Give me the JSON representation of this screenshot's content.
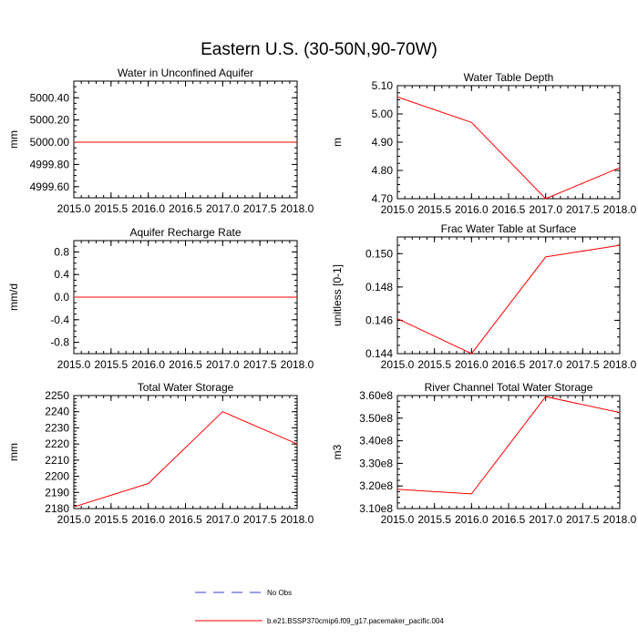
{
  "figure_title": "Eastern U.S. (30-50N,90-70W)",
  "colors": {
    "model": "#ff0000",
    "obs": "#3b3bd6",
    "axis": "#000000"
  },
  "legend": [
    {
      "label": "No Obs",
      "style": "dashed",
      "color": "#3b3bd6"
    },
    {
      "label": "b.e21.BSSP370cmip6.f09_g17.pacemaker_pacific.004",
      "style": "solid",
      "color": "#ff0000"
    }
  ],
  "chart_data": [
    {
      "type": "line",
      "title": "Water in Unconfined Aquifer",
      "ylabel": "mm",
      "xlim": [
        2015.0,
        2018.0
      ],
      "ylim": [
        4999.5,
        5000.55
      ],
      "xticks": [
        "2015.0",
        "2015.5",
        "2016.0",
        "2016.5",
        "2017.0",
        "2017.5",
        "2018.0"
      ],
      "xtick_values": [
        2015.0,
        2015.5,
        2016.0,
        2016.5,
        2017.0,
        2017.5,
        2018.0
      ],
      "yticks": [
        "4999.60",
        "4999.80",
        "5000.00",
        "5000.20",
        "5000.40"
      ],
      "ytick_values": [
        4999.6,
        4999.8,
        5000.0,
        5000.2,
        5000.4
      ],
      "yminor_step": 0.05,
      "series": [
        {
          "name": "b.e21.BSSP370cmip6.f09_g17.pacemaker_pacific.004",
          "x": [
            2015,
            2016,
            2017,
            2018
          ],
          "values": [
            5000.0,
            5000.0,
            5000.0,
            5000.0
          ]
        }
      ]
    },
    {
      "type": "line",
      "title": "Water Table Depth",
      "ylabel": "m",
      "xlim": [
        2015.0,
        2018.0
      ],
      "ylim": [
        4.7,
        5.1
      ],
      "xticks": [
        "2015.0",
        "2015.5",
        "2016.0",
        "2016.5",
        "2017.0",
        "2017.5",
        "2018.0"
      ],
      "xtick_values": [
        2015.0,
        2015.5,
        2016.0,
        2016.5,
        2017.0,
        2017.5,
        2018.0
      ],
      "yticks": [
        "4.70",
        "4.80",
        "4.90",
        "5.00",
        "5.10"
      ],
      "ytick_values": [
        4.7,
        4.8,
        4.9,
        5.0,
        5.1
      ],
      "yminor_step": 0.025,
      "series": [
        {
          "name": "b.e21.BSSP370cmip6.f09_g17.pacemaker_pacific.004",
          "x": [
            2015,
            2016,
            2017,
            2018
          ],
          "values": [
            5.06,
            4.97,
            4.7,
            4.81
          ]
        }
      ]
    },
    {
      "type": "line",
      "title": "Aquifer Recharge Rate",
      "ylabel": "mm/d",
      "xlim": [
        2015.0,
        2018.0
      ],
      "ylim": [
        -1.0,
        1.0
      ],
      "xticks": [
        "2015.0",
        "2015.5",
        "2016.0",
        "2016.5",
        "2017.0",
        "2017.5",
        "2018.0"
      ],
      "xtick_values": [
        2015.0,
        2015.5,
        2016.0,
        2016.5,
        2017.0,
        2017.5,
        2018.0
      ],
      "yticks": [
        "-0.8",
        "-0.4",
        "0.0",
        "0.4",
        "0.8"
      ],
      "ytick_values": [
        -0.8,
        -0.4,
        0.0,
        0.4,
        0.8
      ],
      "yminor_step": 0.1,
      "series": [
        {
          "name": "b.e21.BSSP370cmip6.f09_g17.pacemaker_pacific.004",
          "x": [
            2015,
            2016,
            2017,
            2018
          ],
          "values": [
            0.0,
            0.0,
            0.0,
            0.0
          ]
        }
      ]
    },
    {
      "type": "line",
      "title": "Frac Water Table at Surface",
      "ylabel": "unitless [0-1]",
      "xlim": [
        2015.0,
        2018.0
      ],
      "ylim": [
        0.144,
        0.151
      ],
      "xticks": [
        "2015.0",
        "2015.5",
        "2016.0",
        "2016.5",
        "2017.0",
        "2017.5",
        "2018.0"
      ],
      "xtick_values": [
        2015.0,
        2015.5,
        2016.0,
        2016.5,
        2017.0,
        2017.5,
        2018.0
      ],
      "yticks": [
        "0.144",
        "0.146",
        "0.148",
        "0.150"
      ],
      "ytick_values": [
        0.144,
        0.146,
        0.148,
        0.15
      ],
      "yminor_step": 0.0005,
      "series": [
        {
          "name": "b.e21.BSSP370cmip6.f09_g17.pacemaker_pacific.004",
          "x": [
            2015,
            2016,
            2017,
            2018
          ],
          "values": [
            0.1461,
            0.144,
            0.1498,
            0.1505
          ]
        }
      ]
    },
    {
      "type": "line",
      "title": "Total Water Storage",
      "ylabel": "mm",
      "xlim": [
        2015.0,
        2018.0
      ],
      "ylim": [
        2180,
        2250
      ],
      "xticks": [
        "2015.0",
        "2015.5",
        "2016.0",
        "2016.5",
        "2017.0",
        "2017.5",
        "2018.0"
      ],
      "xtick_values": [
        2015.0,
        2015.5,
        2016.0,
        2016.5,
        2017.0,
        2017.5,
        2018.0
      ],
      "yticks": [
        "2180",
        "2190",
        "2200",
        "2210",
        "2220",
        "2230",
        "2240",
        "2250"
      ],
      "ytick_values": [
        2180,
        2190,
        2200,
        2210,
        2220,
        2230,
        2240,
        2250
      ],
      "yminor_step": 2,
      "series": [
        {
          "name": "b.e21.BSSP370cmip6.f09_g17.pacemaker_pacific.004",
          "x": [
            2015,
            2016,
            2017,
            2018
          ],
          "values": [
            2181,
            2195.5,
            2240,
            2220
          ]
        }
      ]
    },
    {
      "type": "line",
      "title": "River Channel Total Water Storage",
      "ylabel": "m3",
      "xlim": [
        2015.0,
        2018.0
      ],
      "ylim": [
        310000000.0,
        360000000.0
      ],
      "xticks": [
        "2015.0",
        "2015.5",
        "2016.0",
        "2016.5",
        "2017.0",
        "2017.5",
        "2018.0"
      ],
      "xtick_values": [
        2015.0,
        2015.5,
        2016.0,
        2016.5,
        2017.0,
        2017.5,
        2018.0
      ],
      "yticks": [
        "3.10e8",
        "3.20e8",
        "3.30e8",
        "3.40e8",
        "3.50e8",
        "3.60e8"
      ],
      "ytick_values": [
        310000000,
        320000000,
        330000000,
        340000000,
        350000000,
        360000000
      ],
      "yminor_step": 2500000,
      "series": [
        {
          "name": "b.e21.BSSP370cmip6.f09_g17.pacemaker_pacific.004",
          "x": [
            2015,
            2016,
            2017,
            2018
          ],
          "values": [
            318500000,
            316500000,
            359500000,
            352500000
          ]
        }
      ]
    }
  ]
}
